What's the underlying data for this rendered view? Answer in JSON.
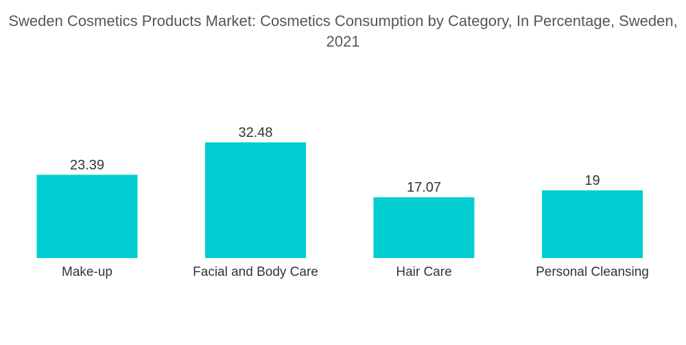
{
  "chart_data": {
    "type": "bar",
    "title": "Sweden Cosmetics Products Market: Cosmetics Consumption by Category, In Percentage, Sweden, 2021",
    "categories": [
      "Make-up",
      "Facial and Body Care",
      "Hair Care",
      "Personal Cleansing"
    ],
    "values": [
      23.39,
      32.48,
      17.07,
      19
    ],
    "data_labels": [
      "23.39",
      "32.48",
      "17.07",
      "19"
    ],
    "xlabel": "",
    "ylabel": "",
    "ylim": [
      0,
      32.48
    ],
    "grid": false,
    "legend": "none",
    "colors": {
      "bar": "#00CED1",
      "label_text": "#333333",
      "title_text": "#555555"
    }
  }
}
